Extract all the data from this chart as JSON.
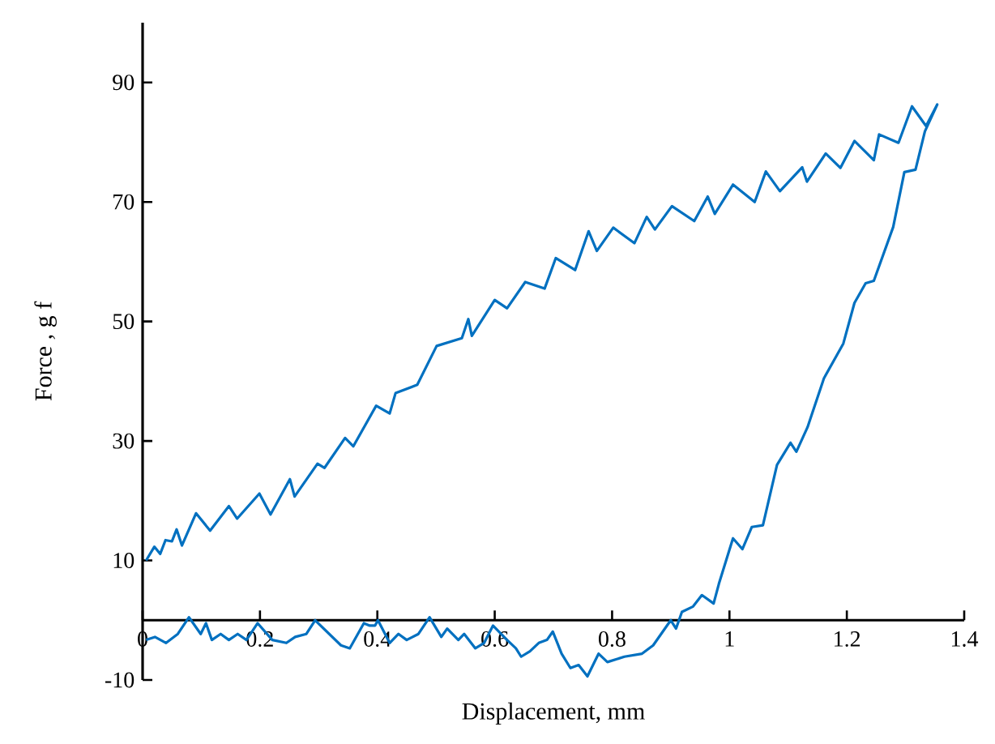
{
  "chart_data": {
    "type": "line",
    "xlabel": "Displacement, mm",
    "ylabel": "Force , g f",
    "xlim": [
      0,
      1.4
    ],
    "ylim": [
      -10,
      100
    ],
    "xticks": [
      0,
      0.2,
      0.4,
      0.6,
      0.8,
      1,
      1.2,
      1.4
    ],
    "yticks": [
      -10,
      10,
      30,
      50,
      70,
      90
    ],
    "x": [
      0.006,
      0.02,
      0.03,
      0.039,
      0.05,
      0.058,
      0.067,
      0.091,
      0.115,
      0.147,
      0.161,
      0.199,
      0.218,
      0.251,
      0.259,
      0.298,
      0.31,
      0.345,
      0.359,
      0.398,
      0.421,
      0.431,
      0.468,
      0.501,
      0.544,
      0.555,
      0.561,
      0.6,
      0.621,
      0.652,
      0.685,
      0.704,
      0.737,
      0.76,
      0.774,
      0.802,
      0.838,
      0.859,
      0.873,
      0.902,
      0.94,
      0.963,
      0.975,
      1.006,
      1.043,
      1.062,
      1.086,
      1.124,
      1.132,
      1.164,
      1.189,
      1.213,
      1.246,
      1.255,
      1.288,
      1.311,
      1.335,
      1.354,
      1.333,
      1.317,
      1.298,
      1.279,
      1.246,
      1.232,
      1.213,
      1.194,
      1.161,
      1.133,
      1.114,
      1.104,
      1.081,
      1.057,
      1.038,
      1.022,
      1.006,
      0.982,
      0.973,
      0.953,
      0.938,
      0.919,
      0.909,
      0.9,
      0.87,
      0.851,
      0.821,
      0.792,
      0.777,
      0.758,
      0.743,
      0.729,
      0.714,
      0.699,
      0.689,
      0.675,
      0.66,
      0.645,
      0.636,
      0.621,
      0.597,
      0.582,
      0.567,
      0.548,
      0.538,
      0.519,
      0.509,
      0.489,
      0.47,
      0.45,
      0.436,
      0.421,
      0.401,
      0.396,
      0.387,
      0.377,
      0.353,
      0.338,
      0.294,
      0.279,
      0.26,
      0.245,
      0.221,
      0.196,
      0.177,
      0.162,
      0.147,
      0.133,
      0.118,
      0.108,
      0.099,
      0.079,
      0.06,
      0.04,
      0.021,
      0.006
    ],
    "series": [
      {
        "color": "#0070c0",
        "values": [
          10.0,
          12.3,
          11.1,
          13.4,
          13.2,
          15.2,
          12.5,
          17.9,
          15.0,
          19.1,
          17.0,
          21.2,
          17.7,
          23.6,
          20.7,
          26.2,
          25.5,
          30.5,
          29.1,
          35.9,
          34.6,
          38.0,
          39.4,
          45.9,
          47.2,
          50.4,
          47.6,
          53.6,
          52.2,
          56.6,
          55.5,
          60.6,
          58.6,
          65.1,
          61.8,
          65.7,
          63.1,
          67.5,
          65.4,
          69.3,
          66.8,
          70.9,
          68.0,
          72.9,
          70.0,
          75.1,
          71.8,
          75.8,
          73.4,
          78.1,
          75.7,
          80.2,
          77.0,
          81.3,
          79.9,
          86.0,
          82.7,
          86.3,
          81.8,
          75.4,
          75.0,
          65.8,
          56.8,
          56.4,
          53.1,
          46.3,
          40.5,
          32.3,
          28.2,
          29.7,
          26.0,
          15.9,
          15.6,
          11.9,
          13.7,
          6.1,
          2.8,
          4.2,
          2.3,
          1.4,
          -1.4,
          0,
          -4.2,
          -5.6,
          -6.1,
          -7.0,
          -5.6,
          -9.4,
          -7.5,
          -8.0,
          -5.6,
          -1.9,
          -3.3,
          -3.8,
          -5.2,
          -6.1,
          -4.7,
          -3.3,
          -0.9,
          -3.8,
          -4.7,
          -2.3,
          -3.3,
          -1.4,
          -2.8,
          0.5,
          -2.3,
          -3.3,
          -2.3,
          -3.8,
          0,
          -0.9,
          -0.9,
          -0.5,
          -4.7,
          -4.2,
          0,
          -2.3,
          -2.8,
          -3.8,
          -3.3,
          -0.5,
          -3.3,
          -2.3,
          -3.3,
          -2.3,
          -3.3,
          -0.5,
          -2.3,
          0.5,
          -2.3,
          -3.8,
          -2.8,
          -3.3
        ]
      }
    ]
  }
}
